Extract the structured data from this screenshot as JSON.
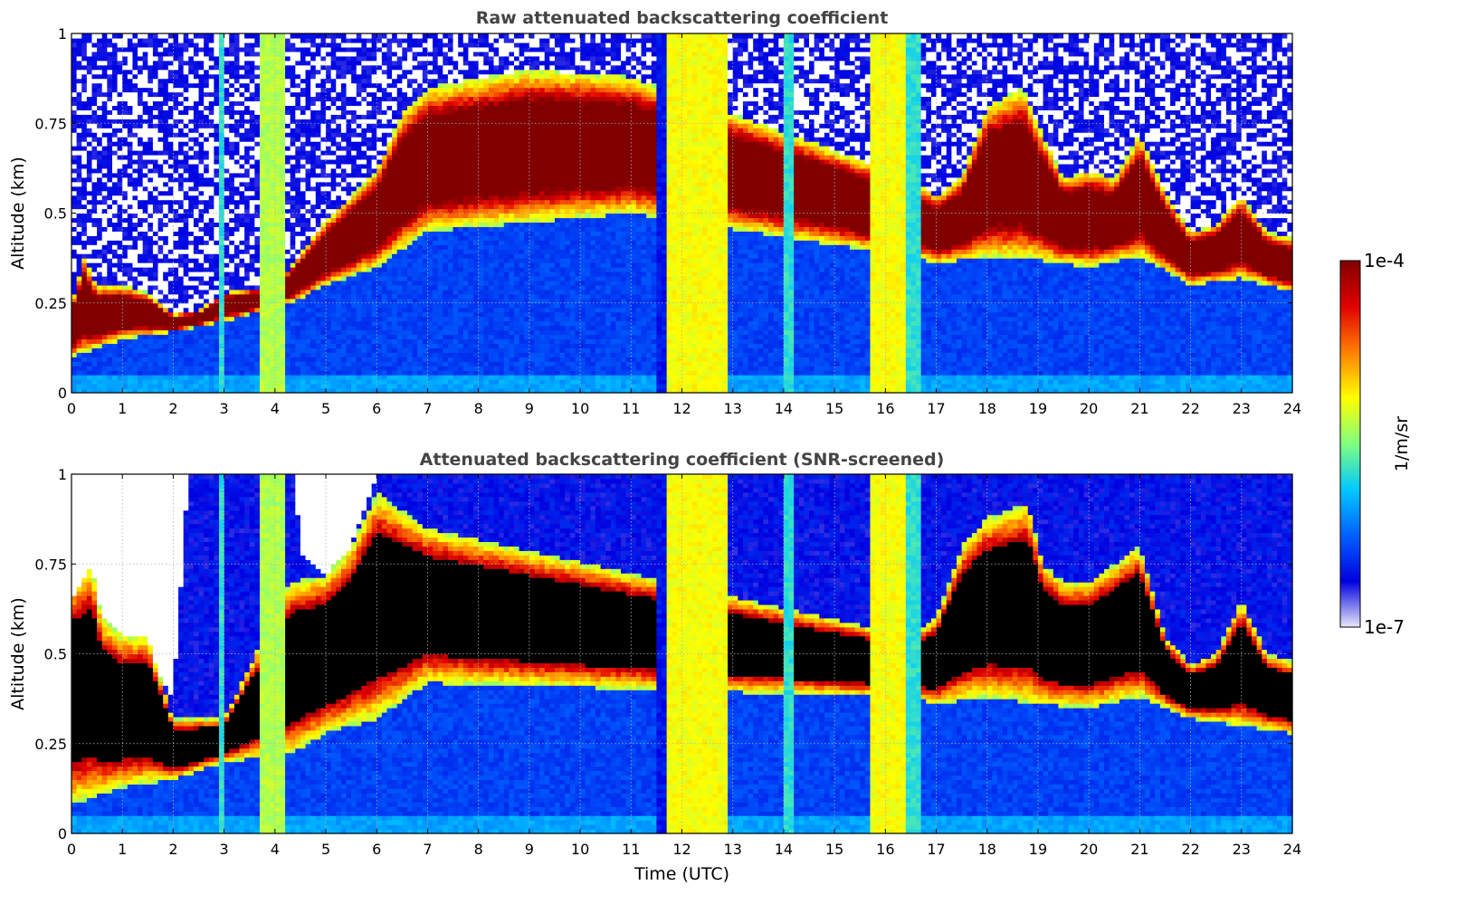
{
  "colors": {
    "nodata": "#ffffff",
    "screened_saturation": "#000000",
    "grid": "#b0b0b0",
    "title": "#444444",
    "colormap": [
      "#e8e8fa",
      "#0000e0",
      "#0060ff",
      "#00c8ff",
      "#80ff80",
      "#ffff00",
      "#ff8000",
      "#e00000",
      "#800000"
    ]
  },
  "chart_data": [
    {
      "type": "heatmap",
      "id": "raw",
      "title": "Raw attenuated backscattering coefficient",
      "xlabel": "",
      "ylabel": "Altitude (km)",
      "xlim": [
        0,
        24
      ],
      "ylim": [
        0,
        1
      ],
      "xticks": [
        "0",
        "1",
        "2",
        "3",
        "4",
        "5",
        "6",
        "7",
        "8",
        "9",
        "10",
        "11",
        "12",
        "13",
        "14",
        "15",
        "16",
        "17",
        "18",
        "19",
        "20",
        "21",
        "22",
        "23",
        "24"
      ],
      "yticks": [
        "0",
        "0.25",
        "0.5",
        "0.75",
        "1"
      ],
      "grid": true,
      "color_scale": "log",
      "colorbar_range": [
        1e-07,
        0.0001
      ],
      "layer_top_km": [
        [
          0,
          0.25
        ],
        [
          0.25,
          0.38
        ],
        [
          0.5,
          0.3
        ],
        [
          1,
          0.3
        ],
        [
          1.5,
          0.28
        ],
        [
          2,
          0.22
        ],
        [
          2.5,
          0.23
        ],
        [
          3,
          0.28
        ],
        [
          4,
          0.3
        ],
        [
          4.3,
          0.35
        ],
        [
          5,
          0.48
        ],
        [
          5.5,
          0.55
        ],
        [
          6,
          0.62
        ],
        [
          6.5,
          0.78
        ],
        [
          7,
          0.85
        ],
        [
          9,
          0.9
        ],
        [
          11,
          0.88
        ],
        [
          16.5,
          0.6
        ],
        [
          17,
          0.55
        ],
        [
          17.5,
          0.6
        ],
        [
          18,
          0.8
        ],
        [
          18.7,
          0.85
        ],
        [
          19,
          0.75
        ],
        [
          19.5,
          0.6
        ],
        [
          20,
          0.62
        ],
        [
          20.5,
          0.6
        ],
        [
          21,
          0.72
        ],
        [
          21.5,
          0.56
        ],
        [
          22,
          0.45
        ],
        [
          22.5,
          0.47
        ],
        [
          23,
          0.55
        ],
        [
          23.5,
          0.45
        ],
        [
          24,
          0.43
        ]
      ],
      "layer_bottom_km": [
        [
          0,
          0.1
        ],
        [
          1,
          0.15
        ],
        [
          2,
          0.17
        ],
        [
          3,
          0.2
        ],
        [
          4.3,
          0.25
        ],
        [
          5,
          0.3
        ],
        [
          6,
          0.35
        ],
        [
          7,
          0.45
        ],
        [
          11,
          0.5
        ],
        [
          16.5,
          0.38
        ],
        [
          17,
          0.36
        ],
        [
          18,
          0.38
        ],
        [
          19,
          0.37
        ],
        [
          20,
          0.35
        ],
        [
          21,
          0.38
        ],
        [
          22,
          0.3
        ],
        [
          23,
          0.32
        ],
        [
          24,
          0.28
        ]
      ],
      "vertical_bands_utc": [
        [
          2.85,
          2.95,
          "cyan"
        ],
        [
          3.7,
          4.15,
          "green-yellow"
        ],
        [
          11.55,
          11.7,
          "blue"
        ],
        [
          11.7,
          12.9,
          "yellow"
        ],
        [
          14.0,
          14.2,
          "cyan"
        ],
        [
          15.75,
          16.4,
          "yellow"
        ],
        [
          16.4,
          16.7,
          "cyan"
        ]
      ]
    },
    {
      "type": "heatmap",
      "id": "screened",
      "title": "Attenuated backscattering coefficient (SNR-screened)",
      "xlabel": "Time (UTC)",
      "ylabel": "Altitude (km)",
      "xlim": [
        0,
        24
      ],
      "ylim": [
        0,
        1
      ],
      "xticks": [
        "0",
        "1",
        "2",
        "3",
        "4",
        "5",
        "6",
        "7",
        "8",
        "9",
        "10",
        "11",
        "12",
        "13",
        "14",
        "15",
        "16",
        "17",
        "18",
        "19",
        "20",
        "21",
        "22",
        "23",
        "24"
      ],
      "yticks": [
        "0",
        "0.25",
        "0.5",
        "0.75",
        "1"
      ],
      "grid": true,
      "color_scale": "log",
      "colorbar_range": [
        1e-07,
        0.0001
      ],
      "data_top_km": [
        [
          0,
          0.65
        ],
        [
          0.4,
          0.75
        ],
        [
          0.6,
          0.6
        ],
        [
          1,
          0.55
        ],
        [
          1.5,
          0.55
        ],
        [
          1.7,
          0.45
        ],
        [
          2,
          0.38
        ],
        [
          2.3,
          1.0
        ],
        [
          4.4,
          1.0
        ],
        [
          4.5,
          0.78
        ],
        [
          5,
          0.72
        ],
        [
          5.5,
          0.8
        ],
        [
          6,
          1.0
        ],
        [
          24,
          1.0
        ]
      ],
      "layer_top_km": [
        [
          0,
          0.7
        ],
        [
          0.4,
          0.75
        ],
        [
          0.6,
          0.6
        ],
        [
          1,
          0.55
        ],
        [
          1.5,
          0.55
        ],
        [
          2,
          0.32
        ],
        [
          2.5,
          0.32
        ],
        [
          3,
          0.32
        ],
        [
          4.3,
          0.7
        ],
        [
          5,
          0.72
        ],
        [
          5.5,
          0.8
        ],
        [
          6,
          0.95
        ],
        [
          7,
          0.85
        ],
        [
          16.5,
          0.55
        ],
        [
          17,
          0.6
        ],
        [
          17.5,
          0.8
        ],
        [
          18,
          0.88
        ],
        [
          18.8,
          0.92
        ],
        [
          19.1,
          0.75
        ],
        [
          19.5,
          0.7
        ],
        [
          20,
          0.7
        ],
        [
          21,
          0.8
        ],
        [
          21.5,
          0.55
        ],
        [
          22,
          0.47
        ],
        [
          22.5,
          0.5
        ],
        [
          23,
          0.65
        ],
        [
          23.5,
          0.5
        ],
        [
          24,
          0.48
        ]
      ],
      "layer_bottom_km": [
        [
          0,
          0.08
        ],
        [
          1,
          0.13
        ],
        [
          2,
          0.15
        ],
        [
          3,
          0.2
        ],
        [
          4.3,
          0.22
        ],
        [
          5,
          0.28
        ],
        [
          6,
          0.32
        ],
        [
          7,
          0.42
        ],
        [
          16.5,
          0.38
        ],
        [
          17,
          0.36
        ],
        [
          18,
          0.38
        ],
        [
          19,
          0.36
        ],
        [
          20,
          0.35
        ],
        [
          21,
          0.38
        ],
        [
          22,
          0.32
        ],
        [
          23,
          0.3
        ],
        [
          24,
          0.28
        ]
      ],
      "vertical_bands_utc": [
        [
          2.85,
          2.95,
          "cyan"
        ],
        [
          3.7,
          4.15,
          "green-yellow"
        ],
        [
          11.55,
          11.7,
          "blue"
        ],
        [
          11.7,
          12.9,
          "yellow"
        ],
        [
          14.0,
          14.2,
          "cyan"
        ],
        [
          15.75,
          16.4,
          "yellow"
        ],
        [
          16.4,
          16.7,
          "cyan"
        ]
      ]
    }
  ],
  "colorbar": {
    "max_label": "1e-4",
    "min_label": "1e-7",
    "unit_label": "1/m/sr"
  }
}
